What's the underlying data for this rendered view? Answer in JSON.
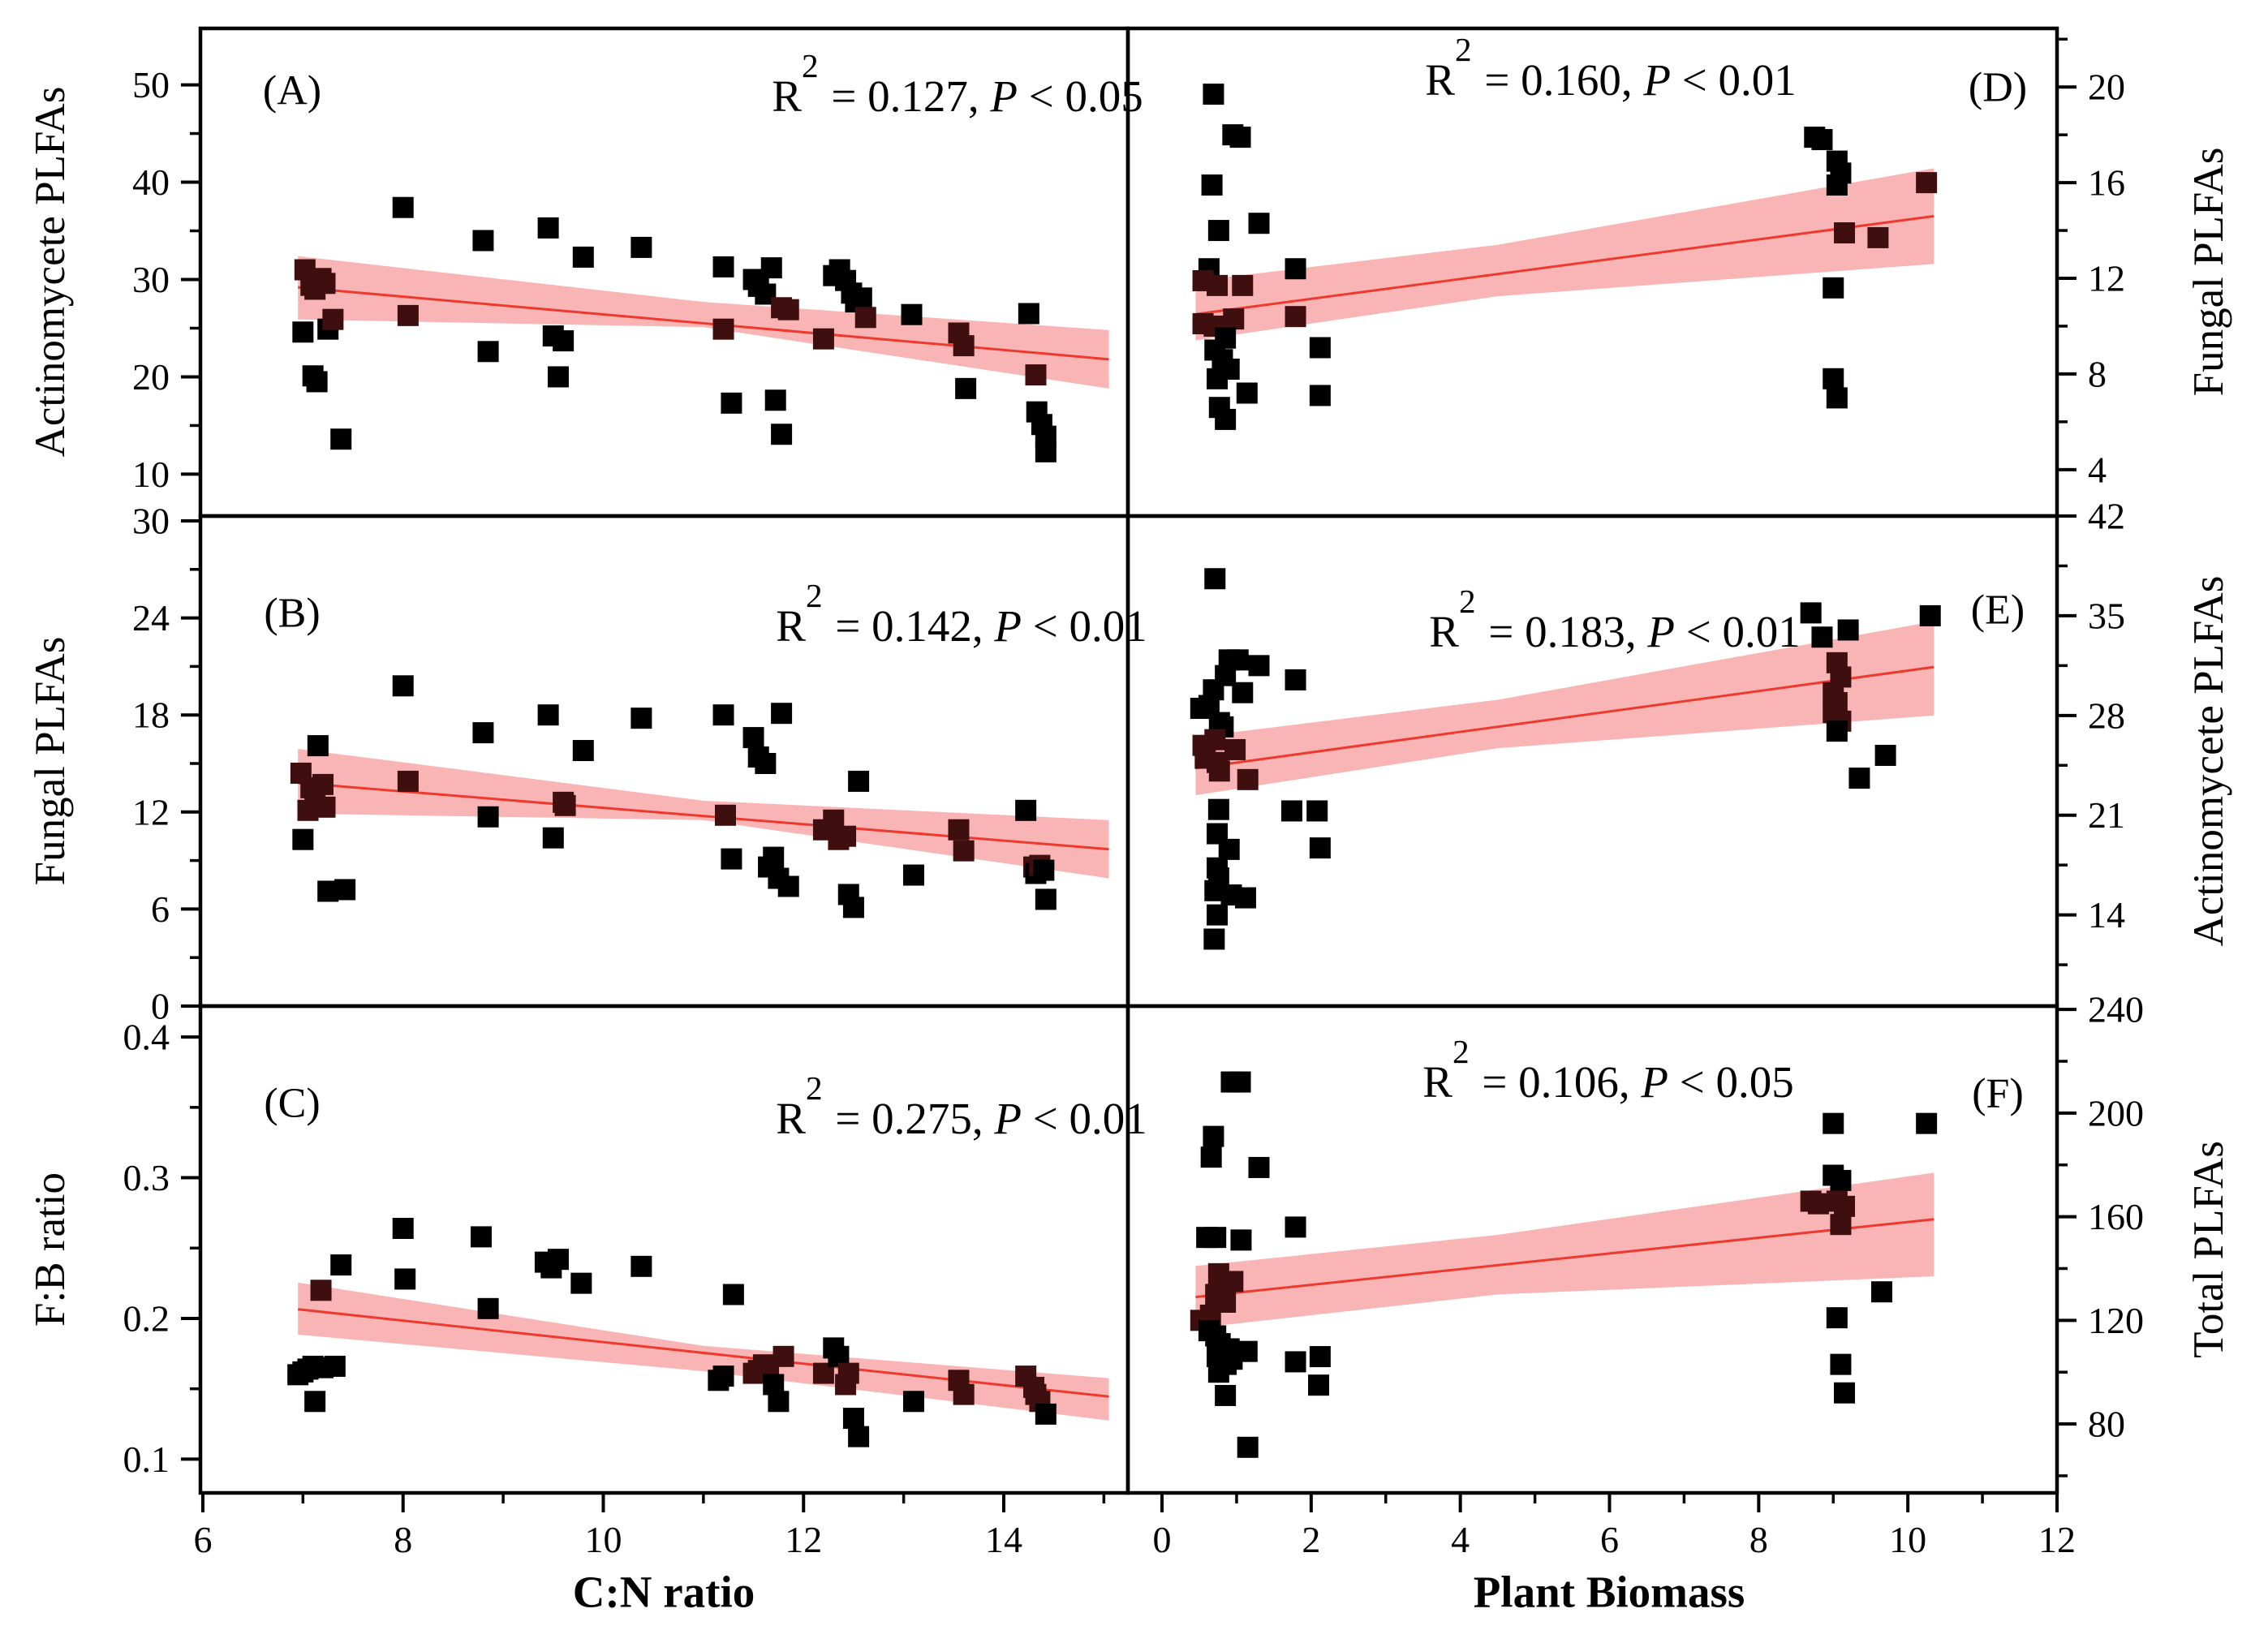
{
  "symbols": {
    "r": "R",
    "exp": "2",
    "p": "P"
  },
  "colors": {
    "band": "#f9b5b5",
    "line": "#ee3a2e",
    "point": "#000000",
    "point_in_band": "#3f0e0e",
    "border": "#000000"
  },
  "x_axis": {
    "left": {
      "label": "C:N ratio",
      "min": 5.976,
      "max": 15.24,
      "ticks": [
        6,
        8,
        10,
        12,
        14
      ],
      "minor": [
        7,
        9,
        11,
        13,
        15
      ]
    },
    "right": {
      "label": "Plant Biomass",
      "min": -0.457,
      "max": 12.0,
      "ticks": [
        0,
        2,
        4,
        6,
        8,
        10,
        12
      ],
      "minor": [
        1,
        3,
        5,
        7,
        9,
        11
      ]
    }
  },
  "chart_data": [
    {
      "id": "A",
      "type": "scatter",
      "letter": "(A)",
      "col": "left",
      "row": 0,
      "yside": "left",
      "xlabel": "C:N ratio",
      "ylabel": "Actinomycete PLFAs",
      "r2": 0.127,
      "p": "< 0.05",
      "ann_eq": " = 0.127, ",
      "ann_tail": " < 0.05",
      "ylim": [
        5.7,
        55.8
      ],
      "yticks": [
        10,
        20,
        30,
        40,
        50
      ],
      "yminor": [
        15,
        25,
        35,
        45
      ],
      "line": {
        "x1": 6.95,
        "y1": 29.2,
        "x2": 15.05,
        "y2": 21.8
      },
      "band": {
        "x": [
          6.95,
          11.0,
          15.05
        ],
        "upper": [
          32.4,
          27.7,
          24.8
        ],
        "lower": [
          25.9,
          25.1,
          18.8
        ]
      },
      "points": [
        [
          7.0,
          24.6
        ],
        [
          7.02,
          31.0
        ],
        [
          7.08,
          29.4
        ],
        [
          7.12,
          29.0
        ],
        [
          7.18,
          30.1
        ],
        [
          7.22,
          29.6
        ],
        [
          7.25,
          24.9
        ],
        [
          7.1,
          20.1
        ],
        [
          7.14,
          19.5
        ],
        [
          7.38,
          13.6
        ],
        [
          7.3,
          25.9
        ],
        [
          8.0,
          37.4
        ],
        [
          8.05,
          26.3
        ],
        [
          8.8,
          34.0
        ],
        [
          8.85,
          22.6
        ],
        [
          9.45,
          35.3
        ],
        [
          9.5,
          24.2
        ],
        [
          9.55,
          20.0
        ],
        [
          9.6,
          23.7
        ],
        [
          9.8,
          32.3
        ],
        [
          10.38,
          33.3
        ],
        [
          11.2,
          31.3
        ],
        [
          11.2,
          24.9
        ],
        [
          11.28,
          17.3
        ],
        [
          11.5,
          30.0
        ],
        [
          11.55,
          29.3
        ],
        [
          11.62,
          28.5
        ],
        [
          11.68,
          31.2
        ],
        [
          11.72,
          17.6
        ],
        [
          11.78,
          14.1
        ],
        [
          11.78,
          27.1
        ],
        [
          11.85,
          26.9
        ],
        [
          12.2,
          23.9
        ],
        [
          12.3,
          30.4
        ],
        [
          12.36,
          31.0
        ],
        [
          12.42,
          29.9
        ],
        [
          12.48,
          28.6
        ],
        [
          12.52,
          27.7
        ],
        [
          12.58,
          28.1
        ],
        [
          12.62,
          26.1
        ],
        [
          13.08,
          26.4
        ],
        [
          13.55,
          24.5
        ],
        [
          13.6,
          23.2
        ],
        [
          13.62,
          18.8
        ],
        [
          14.25,
          26.5
        ],
        [
          14.32,
          20.2
        ],
        [
          14.33,
          16.4
        ],
        [
          14.38,
          15.1
        ],
        [
          14.42,
          13.9
        ],
        [
          14.42,
          12.3
        ]
      ]
    },
    {
      "id": "B",
      "type": "scatter",
      "letter": "(B)",
      "col": "left",
      "row": 1,
      "yside": "left",
      "xlabel": "C:N ratio",
      "ylabel": "Fungal PLFAs",
      "r2": 0.142,
      "p": "< 0.01",
      "ann_eq": " = 0.142, ",
      "ann_tail": " < 0.01",
      "ylim": [
        0,
        30.3
      ],
      "yticks": [
        0,
        6,
        12,
        18,
        24,
        30
      ],
      "yminor": [
        3,
        9,
        15,
        21,
        27
      ],
      "line": {
        "x1": 6.95,
        "y1": 13.8,
        "x2": 15.05,
        "y2": 9.7
      },
      "band": {
        "x": [
          6.95,
          11.0,
          15.05
        ],
        "upper": [
          15.9,
          12.7,
          11.5
        ],
        "lower": [
          11.9,
          11.5,
          7.9
        ]
      },
      "points": [
        [
          6.98,
          14.4
        ],
        [
          7.0,
          10.3
        ],
        [
          7.05,
          12.1
        ],
        [
          7.08,
          13.5
        ],
        [
          7.12,
          12.5
        ],
        [
          7.15,
          16.1
        ],
        [
          7.2,
          13.7
        ],
        [
          7.22,
          12.3
        ],
        [
          7.25,
          7.1
        ],
        [
          7.42,
          7.2
        ],
        [
          8.0,
          19.8
        ],
        [
          8.05,
          13.9
        ],
        [
          8.8,
          16.9
        ],
        [
          8.85,
          11.7
        ],
        [
          9.45,
          18.0
        ],
        [
          9.5,
          10.4
        ],
        [
          9.6,
          12.6
        ],
        [
          9.62,
          12.4
        ],
        [
          9.8,
          15.8
        ],
        [
          10.38,
          17.8
        ],
        [
          11.2,
          18.0
        ],
        [
          11.22,
          11.8
        ],
        [
          11.28,
          9.1
        ],
        [
          11.5,
          16.6
        ],
        [
          11.55,
          15.4
        ],
        [
          11.62,
          15.0
        ],
        [
          11.65,
          8.6
        ],
        [
          11.7,
          9.2
        ],
        [
          11.75,
          7.9
        ],
        [
          11.78,
          18.1
        ],
        [
          11.85,
          7.4
        ],
        [
          12.2,
          10.9
        ],
        [
          12.3,
          11.5
        ],
        [
          12.35,
          10.3
        ],
        [
          12.42,
          10.5
        ],
        [
          12.45,
          6.9
        ],
        [
          12.5,
          6.1
        ],
        [
          12.55,
          13.9
        ],
        [
          13.1,
          8.1
        ],
        [
          13.55,
          10.9
        ],
        [
          13.6,
          9.6
        ],
        [
          14.22,
          12.1
        ],
        [
          14.3,
          8.6
        ],
        [
          14.32,
          8.2
        ],
        [
          14.36,
          8.7
        ],
        [
          14.4,
          8.4
        ],
        [
          14.42,
          6.6
        ]
      ]
    },
    {
      "id": "C",
      "type": "scatter",
      "letter": "(C)",
      "col": "left",
      "row": 2,
      "yside": "left",
      "xlabel": "C:N ratio",
      "ylabel": "F:B ratio",
      "r2": 0.275,
      "p": "< 0.01",
      "ann_eq": " = 0.275, ",
      "ann_tail": " < 0.01",
      "ylim": [
        0.076,
        0.422
      ],
      "yticks": [
        0.1,
        0.2,
        0.3,
        0.4
      ],
      "yminor": [
        0.15,
        0.25,
        0.35
      ],
      "line": {
        "x1": 6.95,
        "y1": 0.2065,
        "x2": 15.05,
        "y2": 0.1445
      },
      "band": {
        "x": [
          6.95,
          11.0,
          15.05
        ],
        "upper": [
          0.2255,
          0.1805,
          0.1575
        ],
        "lower": [
          0.1885,
          0.1625,
          0.1275
        ]
      },
      "points": [
        [
          6.95,
          0.16
        ],
        [
          7.0,
          0.162
        ],
        [
          7.05,
          0.164
        ],
        [
          7.1,
          0.166
        ],
        [
          7.12,
          0.141
        ],
        [
          7.2,
          0.165
        ],
        [
          7.18,
          0.22
        ],
        [
          7.32,
          0.166
        ],
        [
          7.38,
          0.238
        ],
        [
          8.0,
          0.264
        ],
        [
          8.02,
          0.228
        ],
        [
          8.78,
          0.258
        ],
        [
          8.85,
          0.207
        ],
        [
          9.42,
          0.24
        ],
        [
          9.48,
          0.236
        ],
        [
          9.55,
          0.242
        ],
        [
          9.78,
          0.225
        ],
        [
          10.38,
          0.237
        ],
        [
          11.15,
          0.156
        ],
        [
          11.2,
          0.159
        ],
        [
          11.3,
          0.217
        ],
        [
          11.5,
          0.161
        ],
        [
          11.55,
          0.163
        ],
        [
          11.6,
          0.167
        ],
        [
          11.65,
          0.166
        ],
        [
          11.7,
          0.153
        ],
        [
          11.75,
          0.141
        ],
        [
          11.8,
          0.173
        ],
        [
          12.2,
          0.161
        ],
        [
          12.3,
          0.179
        ],
        [
          12.35,
          0.173
        ],
        [
          12.42,
          0.153
        ],
        [
          12.45,
          0.161
        ],
        [
          12.5,
          0.129
        ],
        [
          12.55,
          0.116
        ],
        [
          13.1,
          0.141
        ],
        [
          13.55,
          0.156
        ],
        [
          13.6,
          0.146
        ],
        [
          14.22,
          0.159
        ],
        [
          14.3,
          0.151
        ],
        [
          14.32,
          0.146
        ],
        [
          14.36,
          0.141
        ],
        [
          14.42,
          0.132
        ]
      ]
    },
    {
      "id": "D",
      "type": "scatter",
      "letter": "(D)",
      "col": "right",
      "row": 0,
      "yside": "right",
      "xlabel": "Plant Biomass",
      "ylabel": "Fungal PLFAs",
      "r2": 0.16,
      "p": "< 0.01",
      "ann_eq": " = 0.160, ",
      "ann_tail": " < 0.01",
      "ylim": [
        2.06,
        22.45
      ],
      "yticks": [
        4,
        8,
        12,
        16,
        20
      ],
      "yminor": [
        6,
        10,
        14,
        18,
        22
      ],
      "line": {
        "x1": 0.45,
        "y1": 10.5,
        "x2": 10.35,
        "y2": 14.6
      },
      "band": {
        "x": [
          0.45,
          4.5,
          10.35
        ],
        "upper": [
          11.9,
          13.4,
          16.6
        ],
        "lower": [
          9.4,
          11.25,
          12.6
        ]
      },
      "points": [
        [
          0.69,
          19.7
        ],
        [
          0.95,
          18.0
        ],
        [
          1.05,
          17.9
        ],
        [
          0.67,
          15.9
        ],
        [
          1.3,
          14.3
        ],
        [
          0.76,
          14.0
        ],
        [
          0.63,
          12.4
        ],
        [
          0.55,
          11.9
        ],
        [
          0.74,
          11.7
        ],
        [
          1.08,
          11.7
        ],
        [
          1.79,
          12.4
        ],
        [
          0.55,
          10.1
        ],
        [
          0.7,
          10.0
        ],
        [
          0.78,
          10.0
        ],
        [
          0.96,
          10.3
        ],
        [
          1.79,
          10.4
        ],
        [
          0.85,
          9.5
        ],
        [
          0.71,
          9.0
        ],
        [
          0.81,
          8.6
        ],
        [
          0.9,
          8.2
        ],
        [
          0.74,
          7.8
        ],
        [
          1.14,
          7.2
        ],
        [
          2.12,
          9.1
        ],
        [
          2.12,
          7.1
        ],
        [
          0.77,
          6.6
        ],
        [
          0.85,
          6.1
        ],
        [
          8.75,
          17.9
        ],
        [
          8.85,
          17.8
        ],
        [
          9.05,
          16.9
        ],
        [
          9.1,
          16.4
        ],
        [
          9.05,
          15.9
        ],
        [
          9.15,
          13.9
        ],
        [
          9.6,
          13.7
        ],
        [
          10.25,
          16.0
        ],
        [
          9.0,
          11.6
        ],
        [
          9.0,
          7.8
        ],
        [
          9.05,
          7.0
        ]
      ]
    },
    {
      "id": "E",
      "type": "scatter",
      "letter": "(E)",
      "col": "right",
      "row": 1,
      "yside": "right",
      "xlabel": "Plant Biomass",
      "ylabel": "Actinomycete PLFAs",
      "r2": 0.183,
      "p": "< 0.01",
      "ann_eq": " = 0.183, ",
      "ann_tail": " < 0.01",
      "ylim": [
        7.6,
        42.0
      ],
      "yticks": [
        14,
        21,
        28,
        35,
        42
      ],
      "yminor": [
        10.5,
        17.5,
        24.5,
        31.5,
        38.5
      ],
      "line": {
        "x1": 0.45,
        "y1": 24.3,
        "x2": 10.35,
        "y2": 31.4
      },
      "band": {
        "x": [
          0.45,
          4.5,
          10.35
        ],
        "upper": [
          26.5,
          29.1,
          34.6
        ],
        "lower": [
          22.4,
          25.7,
          28.0
        ]
      },
      "points": [
        [
          0.71,
          37.6
        ],
        [
          0.9,
          31.9
        ],
        [
          1.02,
          31.9
        ],
        [
          1.3,
          31.5
        ],
        [
          0.85,
          30.8
        ],
        [
          1.79,
          30.5
        ],
        [
          0.69,
          29.8
        ],
        [
          1.08,
          29.6
        ],
        [
          0.63,
          28.7
        ],
        [
          0.52,
          28.5
        ],
        [
          0.77,
          27.5
        ],
        [
          0.82,
          27.2
        ],
        [
          0.71,
          26.3
        ],
        [
          0.55,
          25.9
        ],
        [
          0.98,
          25.6
        ],
        [
          0.58,
          25.0
        ],
        [
          0.74,
          24.7
        ],
        [
          0.77,
          24.1
        ],
        [
          1.15,
          23.5
        ],
        [
          0.76,
          21.4
        ],
        [
          1.74,
          21.3
        ],
        [
          2.08,
          21.3
        ],
        [
          2.12,
          18.7
        ],
        [
          0.74,
          19.7
        ],
        [
          0.9,
          18.6
        ],
        [
          0.74,
          17.3
        ],
        [
          0.76,
          16.6
        ],
        [
          0.71,
          15.7
        ],
        [
          0.93,
          15.4
        ],
        [
          1.12,
          15.2
        ],
        [
          0.74,
          14.0
        ],
        [
          0.7,
          12.3
        ],
        [
          8.7,
          35.2
        ],
        [
          8.85,
          33.5
        ],
        [
          9.2,
          34.0
        ],
        [
          9.05,
          31.7
        ],
        [
          9.1,
          30.7
        ],
        [
          9.0,
          29.6
        ],
        [
          9.05,
          28.9
        ],
        [
          9.0,
          28.2
        ],
        [
          9.1,
          27.6
        ],
        [
          9.05,
          26.9
        ],
        [
          9.35,
          23.6
        ],
        [
          9.7,
          25.2
        ],
        [
          10.3,
          35.0
        ]
      ]
    },
    {
      "id": "F",
      "type": "scatter",
      "letter": "(F)",
      "col": "right",
      "row": 2,
      "yside": "right",
      "xlabel": "Plant Biomass",
      "ylabel": "Total PLFAs",
      "r2": 0.106,
      "p": "< 0.05",
      "ann_eq": " = 0.106, ",
      "ann_tail": " < 0.05",
      "ylim": [
        53.4,
        241.3
      ],
      "yticks": [
        80,
        120,
        160,
        200,
        240
      ],
      "yminor": [
        60,
        100,
        140,
        180,
        220
      ],
      "line": {
        "x1": 0.45,
        "y1": 129,
        "x2": 10.35,
        "y2": 159
      },
      "band": {
        "x": [
          0.45,
          4.5,
          10.35
        ],
        "upper": [
          141,
          153,
          177
        ],
        "lower": [
          117,
          130,
          137
        ]
      },
      "points": [
        [
          0.93,
          212
        ],
        [
          1.05,
          212
        ],
        [
          0.69,
          191
        ],
        [
          0.66,
          183
        ],
        [
          1.3,
          179
        ],
        [
          1.79,
          156
        ],
        [
          0.6,
          152
        ],
        [
          0.72,
          152
        ],
        [
          1.06,
          151
        ],
        [
          0.76,
          138
        ],
        [
          0.95,
          135
        ],
        [
          0.72,
          130
        ],
        [
          0.85,
          127
        ],
        [
          0.65,
          122
        ],
        [
          0.52,
          120
        ],
        [
          0.63,
          116
        ],
        [
          0.72,
          114
        ],
        [
          0.78,
          111
        ],
        [
          0.9,
          109
        ],
        [
          1.14,
          108
        ],
        [
          0.74,
          106
        ],
        [
          0.94,
          105
        ],
        [
          0.86,
          103
        ],
        [
          0.76,
          100
        ],
        [
          1.79,
          104
        ],
        [
          2.12,
          106
        ],
        [
          2.1,
          95
        ],
        [
          0.85,
          91
        ],
        [
          1.15,
          71
        ],
        [
          8.7,
          166
        ],
        [
          8.8,
          165
        ],
        [
          9.0,
          176
        ],
        [
          9.1,
          174
        ],
        [
          9.05,
          166
        ],
        [
          9.15,
          164
        ],
        [
          9.1,
          157
        ],
        [
          9.0,
          196
        ],
        [
          9.05,
          121
        ],
        [
          9.1,
          103
        ],
        [
          9.15,
          92
        ],
        [
          9.65,
          131
        ],
        [
          10.25,
          196
        ]
      ]
    }
  ]
}
